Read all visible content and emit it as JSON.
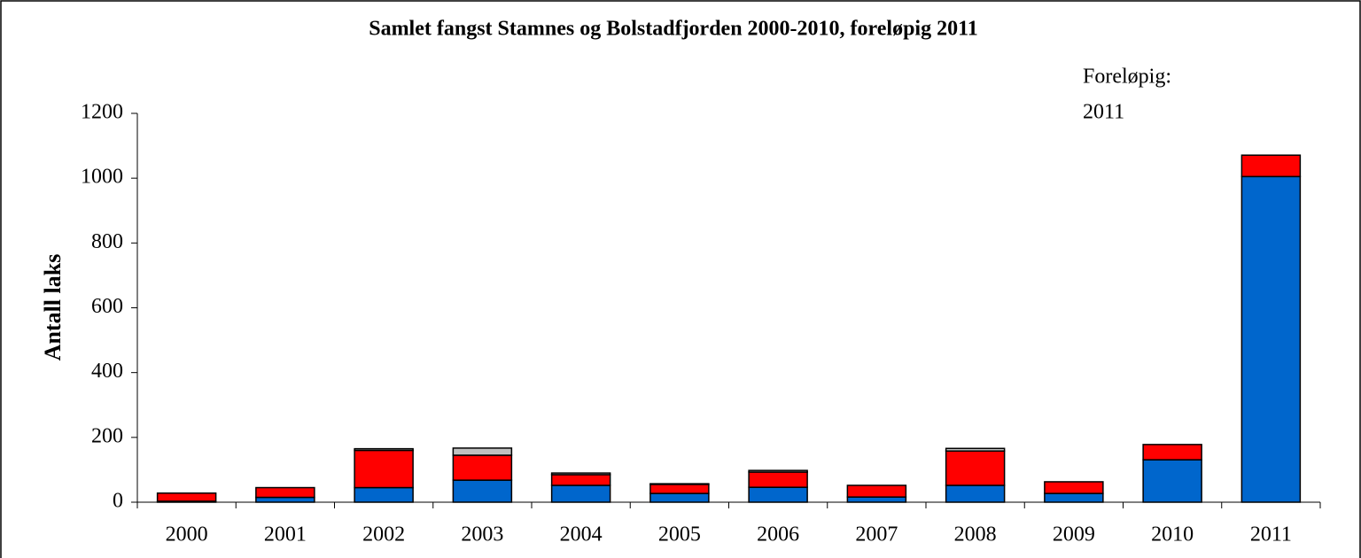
{
  "chart_data": {
    "type": "stacked_bar",
    "title": "Samlet fangst Stamnes og Bolstadfjorden 2000-2010, foreløpig 2011",
    "y_label": "Antall laks",
    "annotations": [
      "Foreløpig:",
      "2011"
    ],
    "categories": [
      "2000",
      "2001",
      "2002",
      "2003",
      "2004",
      "2005",
      "2006",
      "2007",
      "2008",
      "2009",
      "2010",
      "2011"
    ],
    "series": [
      {
        "color": "#0066cc",
        "values": [
          3,
          15,
          45,
          68,
          52,
          27,
          46,
          16,
          52,
          27,
          131,
          1005
        ]
      },
      {
        "color": "#ff0000",
        "values": [
          25,
          30,
          115,
          77,
          33,
          28,
          47,
          36,
          106,
          36,
          47,
          66
        ]
      },
      {
        "color": "#c0c0c0",
        "values": [
          0,
          0,
          5,
          22,
          5,
          2,
          5,
          0,
          8,
          0,
          0,
          0
        ]
      }
    ],
    "ylim": [
      0,
      1200
    ],
    "yticks": [
      0,
      200,
      400,
      600,
      800,
      1000,
      1200
    ]
  }
}
